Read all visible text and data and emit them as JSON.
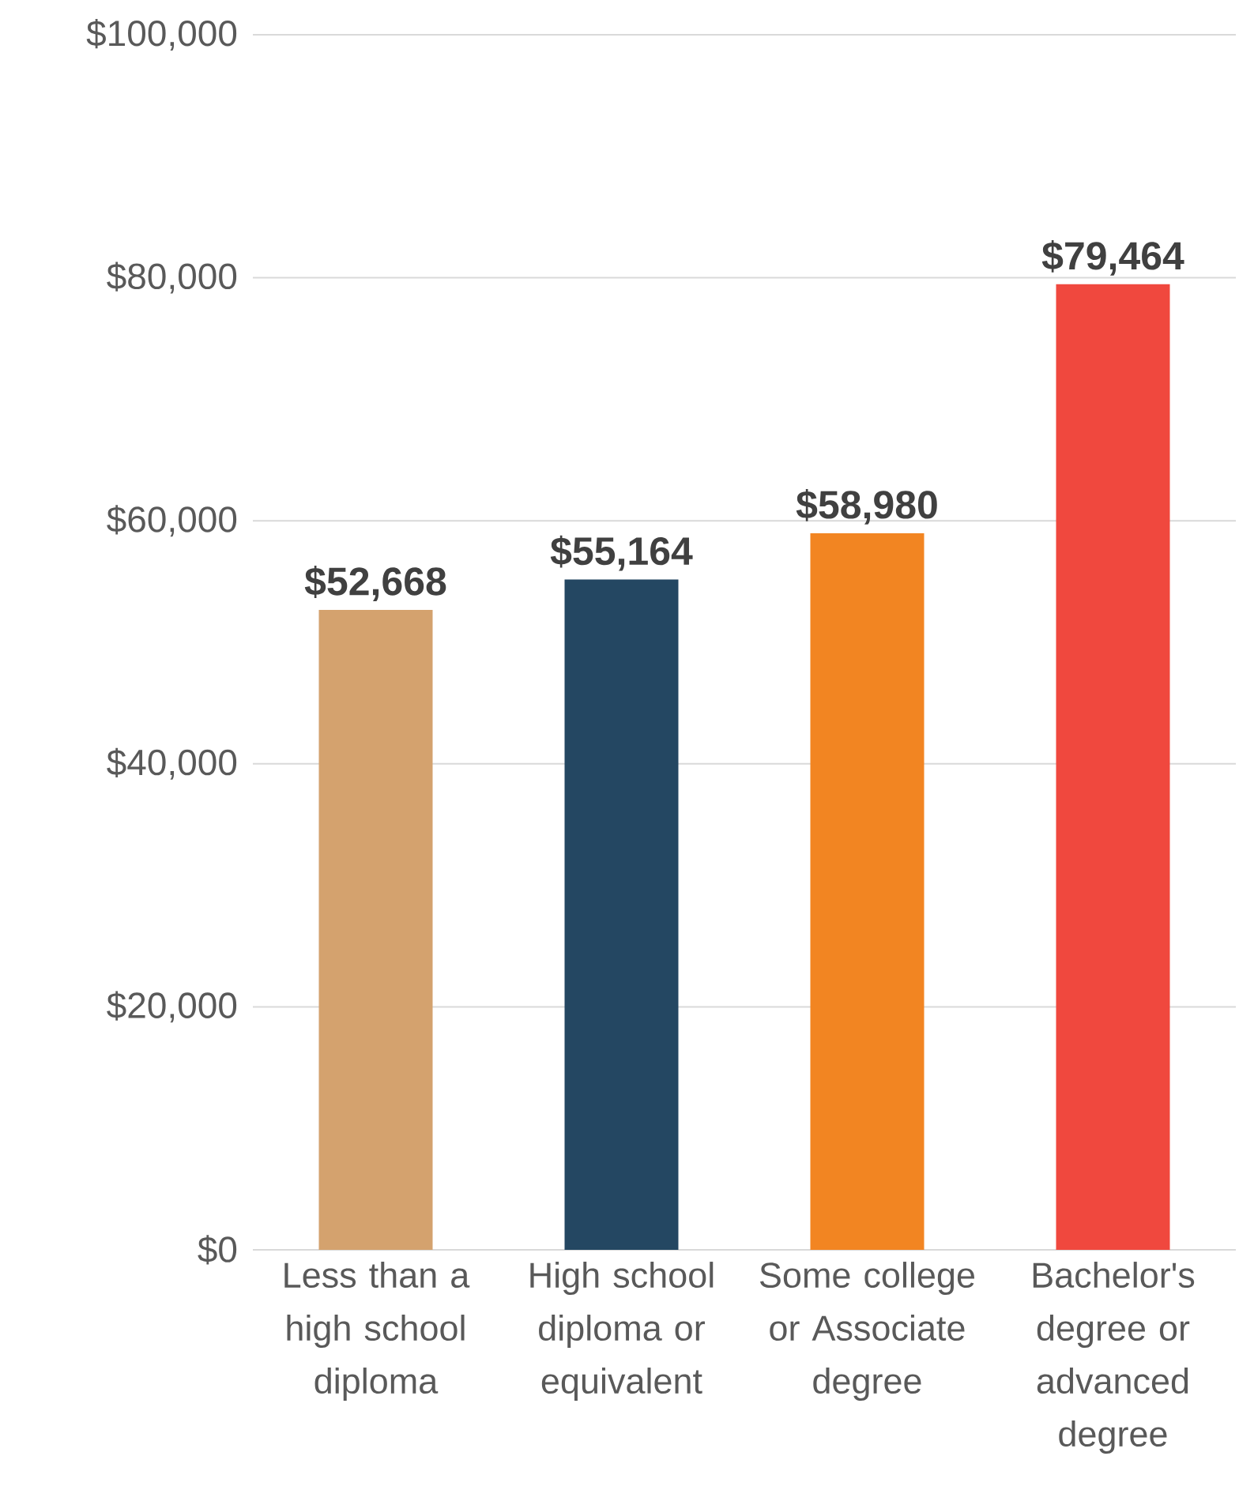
{
  "chart_data": {
    "type": "bar",
    "categories": [
      "Less than a high school diploma",
      "High school diploma or equivalent",
      "Some college or Associate degree",
      "Bachelor's degree or advanced degree"
    ],
    "values": [
      52668,
      55164,
      58980,
      79464
    ],
    "colors": [
      "#d4a26e",
      "#244762",
      "#f28522",
      "#f0483e"
    ],
    "value_labels": [
      "$52,668",
      "$55,164",
      "$58,980",
      "$79,464"
    ],
    "ylim": [
      0,
      100000
    ],
    "yticks": [
      {
        "value": 0,
        "label": "$0"
      },
      {
        "value": 20000,
        "label": "$20,000"
      },
      {
        "value": 40000,
        "label": "$40,000"
      },
      {
        "value": 60000,
        "label": "$60,000"
      },
      {
        "value": 80000,
        "label": "$80,000"
      },
      {
        "value": 100000,
        "label": "$100,000"
      }
    ],
    "grid": "y"
  }
}
